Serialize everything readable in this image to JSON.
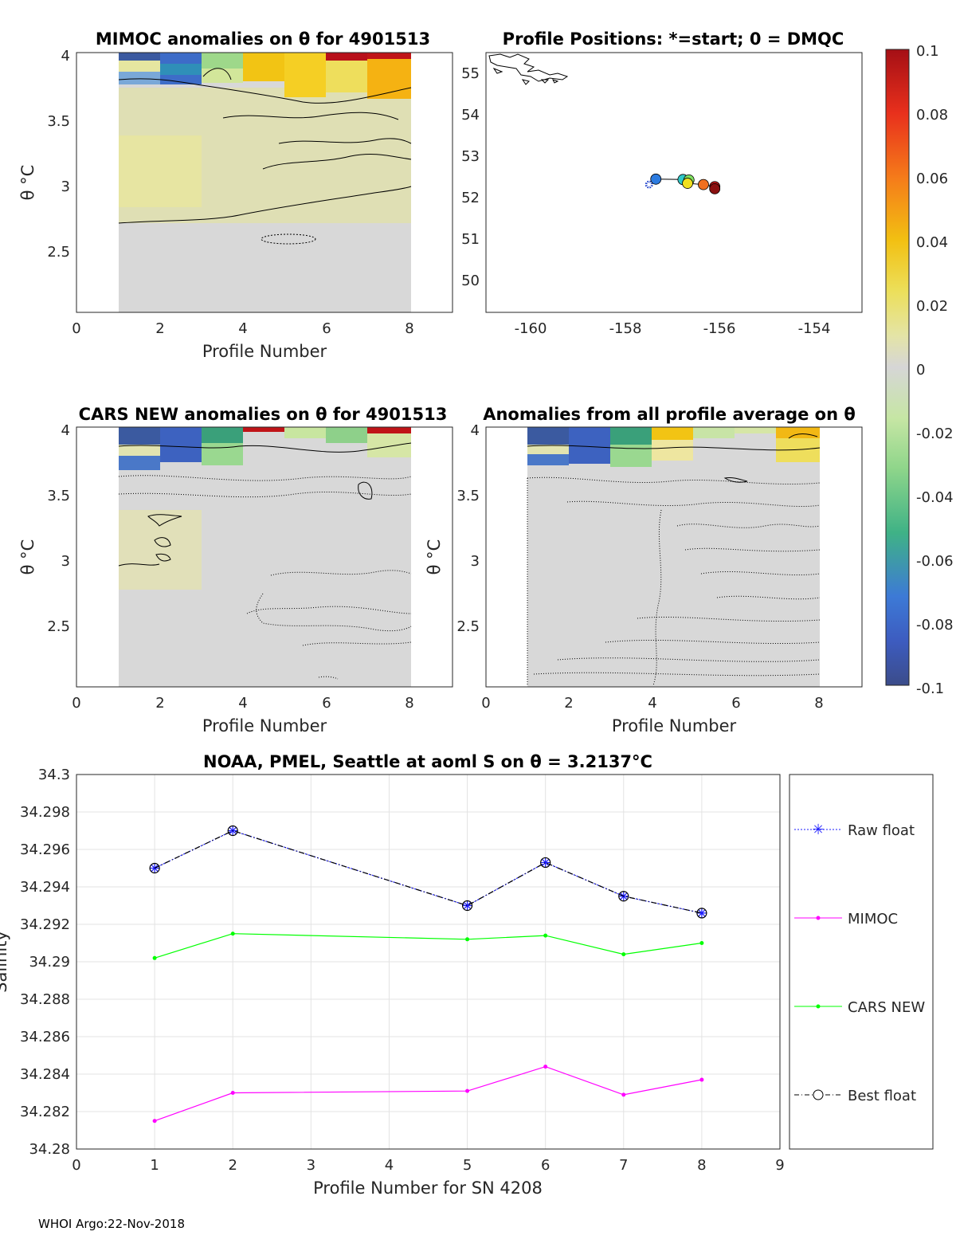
{
  "footer": "WHOI Argo:22-Nov-2018",
  "colors": {
    "raw": "#1a1aff",
    "mimoc": "#ff00ff",
    "cars": "#00ff00",
    "best": "#000000",
    "anomaly_neutral": "#d8d8d8"
  },
  "panels": {
    "mimoc": {
      "title": "MIMOC anomalies on θ  for 4901513",
      "xlabel": "Profile Number",
      "ylabel": "θ °C",
      "xticks": [
        "0",
        "2",
        "4",
        "6",
        "8"
      ],
      "yticks": [
        "4",
        "3.5",
        "3",
        "2.5"
      ]
    },
    "positions": {
      "title": "Profile Positions: *=start; 0 = DMQC",
      "xticks": [
        "-160",
        "-158",
        "-156",
        "-154"
      ],
      "yticks": [
        "55",
        "54",
        "53",
        "52",
        "51",
        "50"
      ]
    },
    "cars": {
      "title": "CARS NEW anomalies on θ for 4901513",
      "xlabel": "Profile Number",
      "ylabel": "θ °C",
      "xticks": [
        "0",
        "2",
        "4",
        "6",
        "8"
      ],
      "yticks": [
        "4",
        "3.5",
        "3",
        "2.5"
      ]
    },
    "average": {
      "title": "Anomalies from all profile average on θ",
      "xlabel": "Profile Number",
      "ylabel": "θ °C",
      "xticks": [
        "0",
        "2",
        "4",
        "6",
        "8"
      ],
      "yticks": [
        "4",
        "3.5",
        "3",
        "2.5"
      ]
    },
    "colorbar": {
      "ticks": [
        "0.1",
        "0.08",
        "0.06",
        "0.04",
        "0.02",
        "0",
        "-0.02",
        "-0.04",
        "-0.06",
        "-0.08",
        "-0.1"
      ]
    }
  },
  "chart_data": [
    {
      "type": "line",
      "title": "NOAA, PMEL, Seattle at aoml S on θ = 3.2137°C",
      "xlabel": "Profile Number for SN 4208",
      "ylabel": "Salinity",
      "xlim": [
        0,
        9
      ],
      "ylim": [
        34.28,
        34.3
      ],
      "xticks": [
        "0",
        "1",
        "2",
        "3",
        "4",
        "5",
        "6",
        "7",
        "8",
        "9"
      ],
      "yticks": [
        "34.3",
        "34.298",
        "34.296",
        "34.294",
        "34.292",
        "34.29",
        "34.288",
        "34.286",
        "34.284",
        "34.282",
        "34.28"
      ],
      "grid": true,
      "legend_position": "outside-right",
      "series": [
        {
          "name": "Raw float",
          "color": "#1a1aff",
          "style": "dotted-star",
          "x": [
            1,
            2,
            5,
            6,
            7,
            8
          ],
          "values": [
            34.295,
            34.297,
            34.293,
            34.2953,
            34.2935,
            34.2926
          ]
        },
        {
          "name": "MIMOC",
          "color": "#ff00ff",
          "style": "solid-dot",
          "x": [
            1,
            2,
            5,
            6,
            7,
            8
          ],
          "values": [
            34.2815,
            34.283,
            34.2831,
            34.2844,
            34.2829,
            34.2837
          ]
        },
        {
          "name": "CARS NEW",
          "color": "#00ff00",
          "style": "solid-dot",
          "x": [
            1,
            2,
            5,
            6,
            7,
            8
          ],
          "values": [
            34.2902,
            34.2915,
            34.2912,
            34.2914,
            34.2904,
            34.291
          ]
        },
        {
          "name": "Best float",
          "color": "#000000",
          "style": "dashdot-circle",
          "x": [
            1,
            2,
            5,
            6,
            7,
            8
          ],
          "values": [
            34.295,
            34.297,
            34.293,
            34.2953,
            34.2935,
            34.2926
          ]
        }
      ]
    },
    {
      "type": "scatter",
      "title": "Profile Positions: *=start; 0 = DMQC",
      "xlim": [
        -161.1,
        -152.8
      ],
      "ylim": [
        49.3,
        55.5
      ],
      "points": [
        {
          "lon": -157.5,
          "lat": 52.35,
          "color": "#2244cc",
          "marker": "star"
        },
        {
          "lon": -157.35,
          "lat": 52.48,
          "color": "#2c7be0"
        },
        {
          "lon": -156.75,
          "lat": 52.47,
          "color": "#30c8c8"
        },
        {
          "lon": -156.62,
          "lat": 52.46,
          "color": "#80e060"
        },
        {
          "lon": -156.65,
          "lat": 52.38,
          "color": "#f0e020"
        },
        {
          "lon": -156.3,
          "lat": 52.35,
          "color": "#f07020"
        },
        {
          "lon": -156.05,
          "lat": 52.3,
          "color": "#c01818"
        },
        {
          "lon": -156.05,
          "lat": 52.25,
          "color": "#8a1010"
        }
      ]
    }
  ]
}
